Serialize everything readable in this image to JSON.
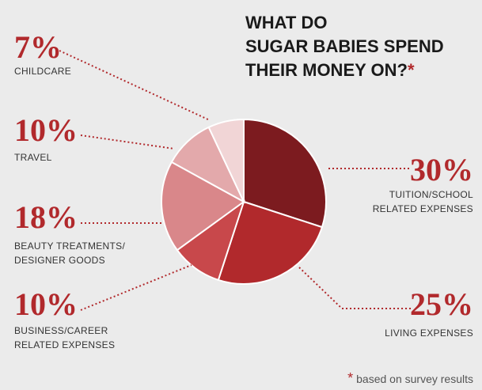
{
  "chart_data": {
    "type": "pie",
    "title": [
      "WHAT DO",
      "SUGAR BABIES SPEND",
      "THEIR MONEY ON?"
    ],
    "categories": [
      [
        "TUITION/SCHOOL",
        "RELATED EXPENSES"
      ],
      [
        "LIVING EXPENSES"
      ],
      [
        "BUSINESS/CAREER",
        "RELATED EXPENSES"
      ],
      [
        "BEAUTY TREATMENTS/",
        "DESIGNER GOODS"
      ],
      [
        "TRAVEL"
      ],
      [
        "CHILDCARE"
      ]
    ],
    "values": [
      30,
      25,
      10,
      18,
      10,
      7
    ],
    "value_labels": [
      "30%",
      "25%",
      "10%",
      "18%",
      "10%",
      "7%"
    ],
    "colors": [
      "#7c1b1f",
      "#b1292c",
      "#c8484b",
      "#d9878a",
      "#e3a9ab",
      "#f1d5d6"
    ],
    "footnote": {
      "mark": "*",
      "text": "based on survey results"
    }
  }
}
